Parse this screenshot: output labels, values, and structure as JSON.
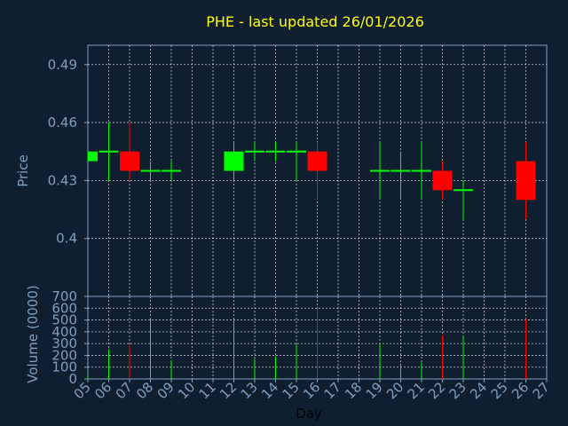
{
  "chart_data": {
    "title": "PHE - last updated 26/01/2026",
    "xlabel": "Day",
    "x_ticks": [
      "05",
      "06",
      "07",
      "08",
      "09",
      "10",
      "11",
      "12",
      "13",
      "14",
      "15",
      "16",
      "17",
      "18",
      "19",
      "20",
      "21",
      "22",
      "23",
      "24",
      "25",
      "26",
      "27"
    ],
    "x_range": [
      5,
      27
    ],
    "colors": {
      "background": "#0f1f30",
      "up": "#00ff00",
      "down": "#ff0000",
      "axis": "#7f9fbf",
      "grid": "#ffffff",
      "title": "#ffff00"
    },
    "grid": true,
    "panels": [
      {
        "type": "candlestick",
        "ylabel": "Price",
        "ylim": [
          0.37,
          0.5
        ],
        "y_ticks": [
          0.4,
          0.43,
          0.46,
          0.49
        ],
        "y_tick_labels": [
          "0.4",
          "0.43",
          "0.46",
          "0.49"
        ],
        "candles": [
          {
            "day": 5,
            "open": 0.44,
            "high": 0.445,
            "low": 0.44,
            "close": 0.445
          },
          {
            "day": 6,
            "open": 0.445,
            "high": 0.46,
            "low": 0.43,
            "close": 0.445
          },
          {
            "day": 7,
            "open": 0.445,
            "high": 0.46,
            "low": 0.43,
            "close": 0.435
          },
          {
            "day": 8,
            "open": 0.435,
            "high": 0.44,
            "low": 0.43,
            "close": 0.435
          },
          {
            "day": 9,
            "open": 0.435,
            "high": 0.44,
            "low": 0.43,
            "close": 0.435
          },
          {
            "day": 12,
            "open": 0.435,
            "high": 0.45,
            "low": 0.43,
            "close": 0.445
          },
          {
            "day": 13,
            "open": 0.445,
            "high": 0.45,
            "low": 0.44,
            "close": 0.445
          },
          {
            "day": 14,
            "open": 0.445,
            "high": 0.45,
            "low": 0.44,
            "close": 0.445
          },
          {
            "day": 15,
            "open": 0.445,
            "high": 0.45,
            "low": 0.43,
            "close": 0.445
          },
          {
            "day": 16,
            "open": 0.445,
            "high": 0.45,
            "low": 0.42,
            "close": 0.435
          },
          {
            "day": 19,
            "open": 0.435,
            "high": 0.45,
            "low": 0.42,
            "close": 0.435
          },
          {
            "day": 20,
            "open": 0.435,
            "high": 0.445,
            "low": 0.42,
            "close": 0.435
          },
          {
            "day": 21,
            "open": 0.435,
            "high": 0.45,
            "low": 0.42,
            "close": 0.435
          },
          {
            "day": 22,
            "open": 0.435,
            "high": 0.44,
            "low": 0.42,
            "close": 0.425
          },
          {
            "day": 23,
            "open": 0.425,
            "high": 0.43,
            "low": 0.41,
            "close": 0.425
          },
          {
            "day": 26,
            "open": 0.44,
            "high": 0.45,
            "low": 0.41,
            "close": 0.42
          }
        ]
      },
      {
        "type": "bar",
        "ylabel": "Volume (0000)",
        "ylim": [
          0,
          700
        ],
        "y_ticks": [
          0,
          100,
          200,
          300,
          400,
          500,
          600,
          700
        ],
        "y_tick_labels": [
          "0",
          "100",
          "200",
          "300",
          "400",
          "500",
          "600",
          "700"
        ],
        "bars": [
          {
            "day": 5,
            "value": 30,
            "dir": "up"
          },
          {
            "day": 6,
            "value": 250,
            "dir": "up"
          },
          {
            "day": 7,
            "value": 290,
            "dir": "down"
          },
          {
            "day": 8,
            "value": 520,
            "dir": "up"
          },
          {
            "day": 9,
            "value": 160,
            "dir": "up"
          },
          {
            "day": 12,
            "value": 500,
            "dir": "up"
          },
          {
            "day": 13,
            "value": 170,
            "dir": "up"
          },
          {
            "day": 14,
            "value": 190,
            "dir": "up"
          },
          {
            "day": 15,
            "value": 290,
            "dir": "up"
          },
          {
            "day": 16,
            "value": 600,
            "dir": "down"
          },
          {
            "day": 19,
            "value": 310,
            "dir": "up"
          },
          {
            "day": 20,
            "value": 130,
            "dir": "up"
          },
          {
            "day": 21,
            "value": 140,
            "dir": "up"
          },
          {
            "day": 22,
            "value": 370,
            "dir": "down"
          },
          {
            "day": 23,
            "value": 370,
            "dir": "up"
          },
          {
            "day": 26,
            "value": 510,
            "dir": "down"
          }
        ]
      }
    ]
  }
}
